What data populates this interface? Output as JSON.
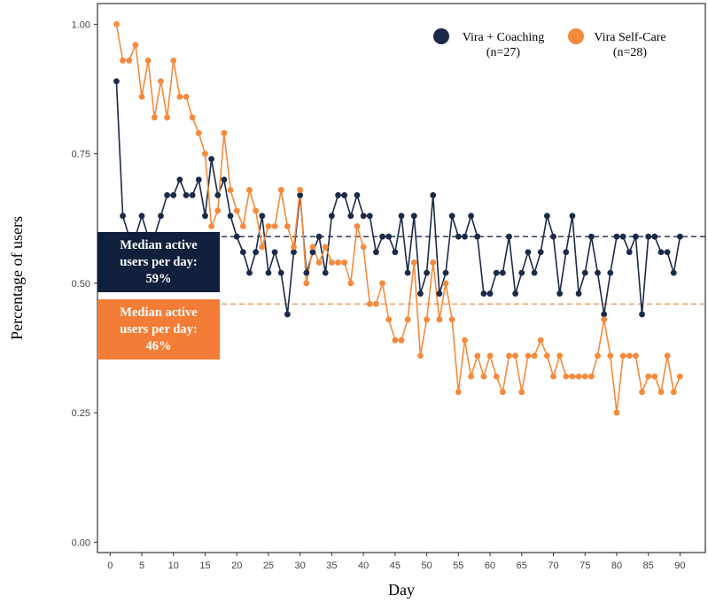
{
  "chart_data": {
    "type": "line",
    "xlabel": "Day",
    "ylabel": "Percentage of users",
    "xlim": [
      -2,
      94
    ],
    "ylim": [
      -0.02,
      1.04
    ],
    "xticks": [
      0,
      5,
      10,
      15,
      20,
      25,
      30,
      35,
      40,
      45,
      50,
      55,
      60,
      65,
      70,
      75,
      80,
      85,
      90
    ],
    "yticks": [
      0.0,
      0.25,
      0.5,
      0.75,
      1.0
    ],
    "ytick_labels": [
      "0.00",
      "0.25",
      "0.50",
      "0.75",
      "1.00"
    ],
    "grid": false,
    "legend_position": "top-right",
    "x": [
      1,
      2,
      3,
      4,
      5,
      6,
      7,
      8,
      9,
      10,
      11,
      12,
      13,
      14,
      15,
      16,
      17,
      18,
      19,
      20,
      21,
      22,
      23,
      24,
      25,
      26,
      27,
      28,
      29,
      30,
      31,
      32,
      33,
      34,
      35,
      36,
      37,
      38,
      39,
      40,
      41,
      42,
      43,
      44,
      45,
      46,
      47,
      48,
      49,
      50,
      51,
      52,
      53,
      54,
      55,
      56,
      57,
      58,
      59,
      60,
      61,
      62,
      63,
      64,
      65,
      66,
      67,
      68,
      69,
      70,
      71,
      72,
      73,
      74,
      75,
      76,
      77,
      78,
      79,
      80,
      81,
      82,
      83,
      84,
      85,
      86,
      87,
      88,
      89,
      90
    ],
    "series": [
      {
        "name": "Vira + Coaching",
        "legend_label_line1": "Vira + Coaching",
        "legend_label_line2": "(n=27)",
        "color": "#1b2a47",
        "median": 0.59,
        "values": [
          0.89,
          0.63,
          0.59,
          0.59,
          0.63,
          0.59,
          0.59,
          0.63,
          0.67,
          0.67,
          0.7,
          0.67,
          0.67,
          0.7,
          0.63,
          0.74,
          0.67,
          0.7,
          0.63,
          0.59,
          0.56,
          0.52,
          0.56,
          0.63,
          0.52,
          0.56,
          0.52,
          0.44,
          0.56,
          0.67,
          0.52,
          0.56,
          0.59,
          0.52,
          0.63,
          0.67,
          0.67,
          0.63,
          0.67,
          0.63,
          0.63,
          0.56,
          0.59,
          0.59,
          0.56,
          0.63,
          0.52,
          0.63,
          0.48,
          0.52,
          0.67,
          0.48,
          0.52,
          0.63,
          0.59,
          0.59,
          0.63,
          0.59,
          0.48,
          0.48,
          0.52,
          0.52,
          0.59,
          0.48,
          0.52,
          0.56,
          0.52,
          0.56,
          0.63,
          0.59,
          0.48,
          0.56,
          0.63,
          0.48,
          0.52,
          0.59,
          0.52,
          0.44,
          0.52,
          0.59,
          0.59,
          0.56,
          0.59,
          0.44,
          0.59,
          0.59,
          0.56,
          0.56,
          0.52,
          0.59
        ]
      },
      {
        "name": "Vira Self-Care",
        "legend_label_line1": "Vira Self-Care",
        "legend_label_line2": "(n=28)",
        "color": "#f58a3c",
        "median": 0.46,
        "values": [
          1.0,
          0.93,
          0.93,
          0.96,
          0.86,
          0.93,
          0.82,
          0.89,
          0.82,
          0.93,
          0.86,
          0.86,
          0.82,
          0.79,
          0.75,
          0.61,
          0.64,
          0.79,
          0.68,
          0.64,
          0.61,
          0.68,
          0.64,
          0.57,
          0.61,
          0.61,
          0.68,
          0.61,
          0.57,
          0.68,
          0.5,
          0.57,
          0.54,
          0.57,
          0.54,
          0.54,
          0.54,
          0.5,
          0.61,
          0.57,
          0.46,
          0.46,
          0.5,
          0.43,
          0.39,
          0.39,
          0.43,
          0.54,
          0.36,
          0.43,
          0.54,
          0.43,
          0.5,
          0.43,
          0.29,
          0.39,
          0.32,
          0.36,
          0.32,
          0.36,
          0.32,
          0.29,
          0.36,
          0.36,
          0.29,
          0.36,
          0.36,
          0.39,
          0.36,
          0.32,
          0.36,
          0.32,
          0.32,
          0.32,
          0.32,
          0.32,
          0.36,
          0.43,
          0.36,
          0.25,
          0.36,
          0.36,
          0.36,
          0.29,
          0.32,
          0.32,
          0.29,
          0.36,
          0.29,
          0.32
        ]
      }
    ],
    "annotations": [
      {
        "series": "Vira + Coaching",
        "lines": [
          "Median active",
          "users per day:",
          "59%"
        ],
        "color": "#0f1f3c"
      },
      {
        "series": "Vira Self-Care",
        "lines": [
          "Median active",
          "users per day:",
          "46%"
        ],
        "color": "#f37d36"
      }
    ]
  }
}
